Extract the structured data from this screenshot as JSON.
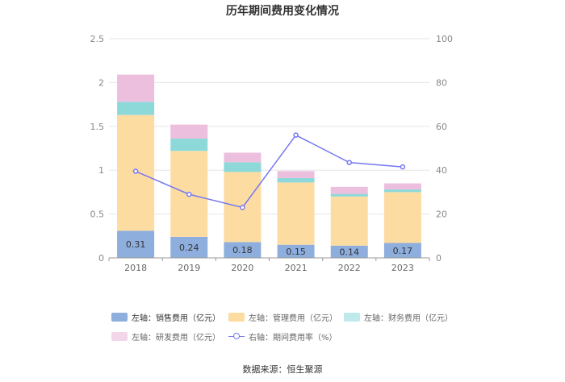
{
  "chart_data": {
    "type": "bar",
    "title": "历年期间费用变化情况",
    "categories": [
      "2018",
      "2019",
      "2020",
      "2021",
      "2022",
      "2023"
    ],
    "y_left": {
      "range": [
        0,
        2.5
      ],
      "ticks": [
        "0",
        "0.5",
        "1",
        "1.5",
        "2",
        "2.5"
      ]
    },
    "y_right": {
      "range": [
        0,
        100
      ],
      "ticks": [
        "0",
        "20",
        "40",
        "60",
        "80",
        "100"
      ]
    },
    "series": [
      {
        "name": "左轴：销售费用（亿元）",
        "axis": "left",
        "kind": "stacked-bar",
        "color": "#8eaedd",
        "values": [
          0.31,
          0.24,
          0.18,
          0.15,
          0.14,
          0.17
        ],
        "labels": [
          "0.31",
          "0.24",
          "0.18",
          "0.15",
          "0.14",
          "0.17"
        ]
      },
      {
        "name": "左轴：管理费用（亿元）",
        "axis": "left",
        "kind": "stacked-bar",
        "color": "#fddca2",
        "values": [
          1.32,
          0.98,
          0.8,
          0.71,
          0.56,
          0.58
        ]
      },
      {
        "name": "左轴：财务费用（亿元）",
        "axis": "left",
        "kind": "stacked-bar",
        "color": "#8dd9da",
        "values": [
          0.15,
          0.14,
          0.11,
          0.05,
          0.03,
          0.03
        ]
      },
      {
        "name": "左轴：研发费用（亿元）",
        "axis": "left",
        "kind": "stacked-bar",
        "color": "#ecbfde",
        "values": [
          0.31,
          0.16,
          0.11,
          0.08,
          0.08,
          0.07
        ]
      },
      {
        "name": "右轴：期间费用率（%）",
        "axis": "right",
        "kind": "line",
        "color": "#7577f0",
        "values": [
          39.5,
          29.0,
          23.0,
          56.0,
          43.5,
          41.5
        ]
      }
    ],
    "grid": true,
    "legend_position": "bottom"
  },
  "source": "数据来源：恒生聚源"
}
